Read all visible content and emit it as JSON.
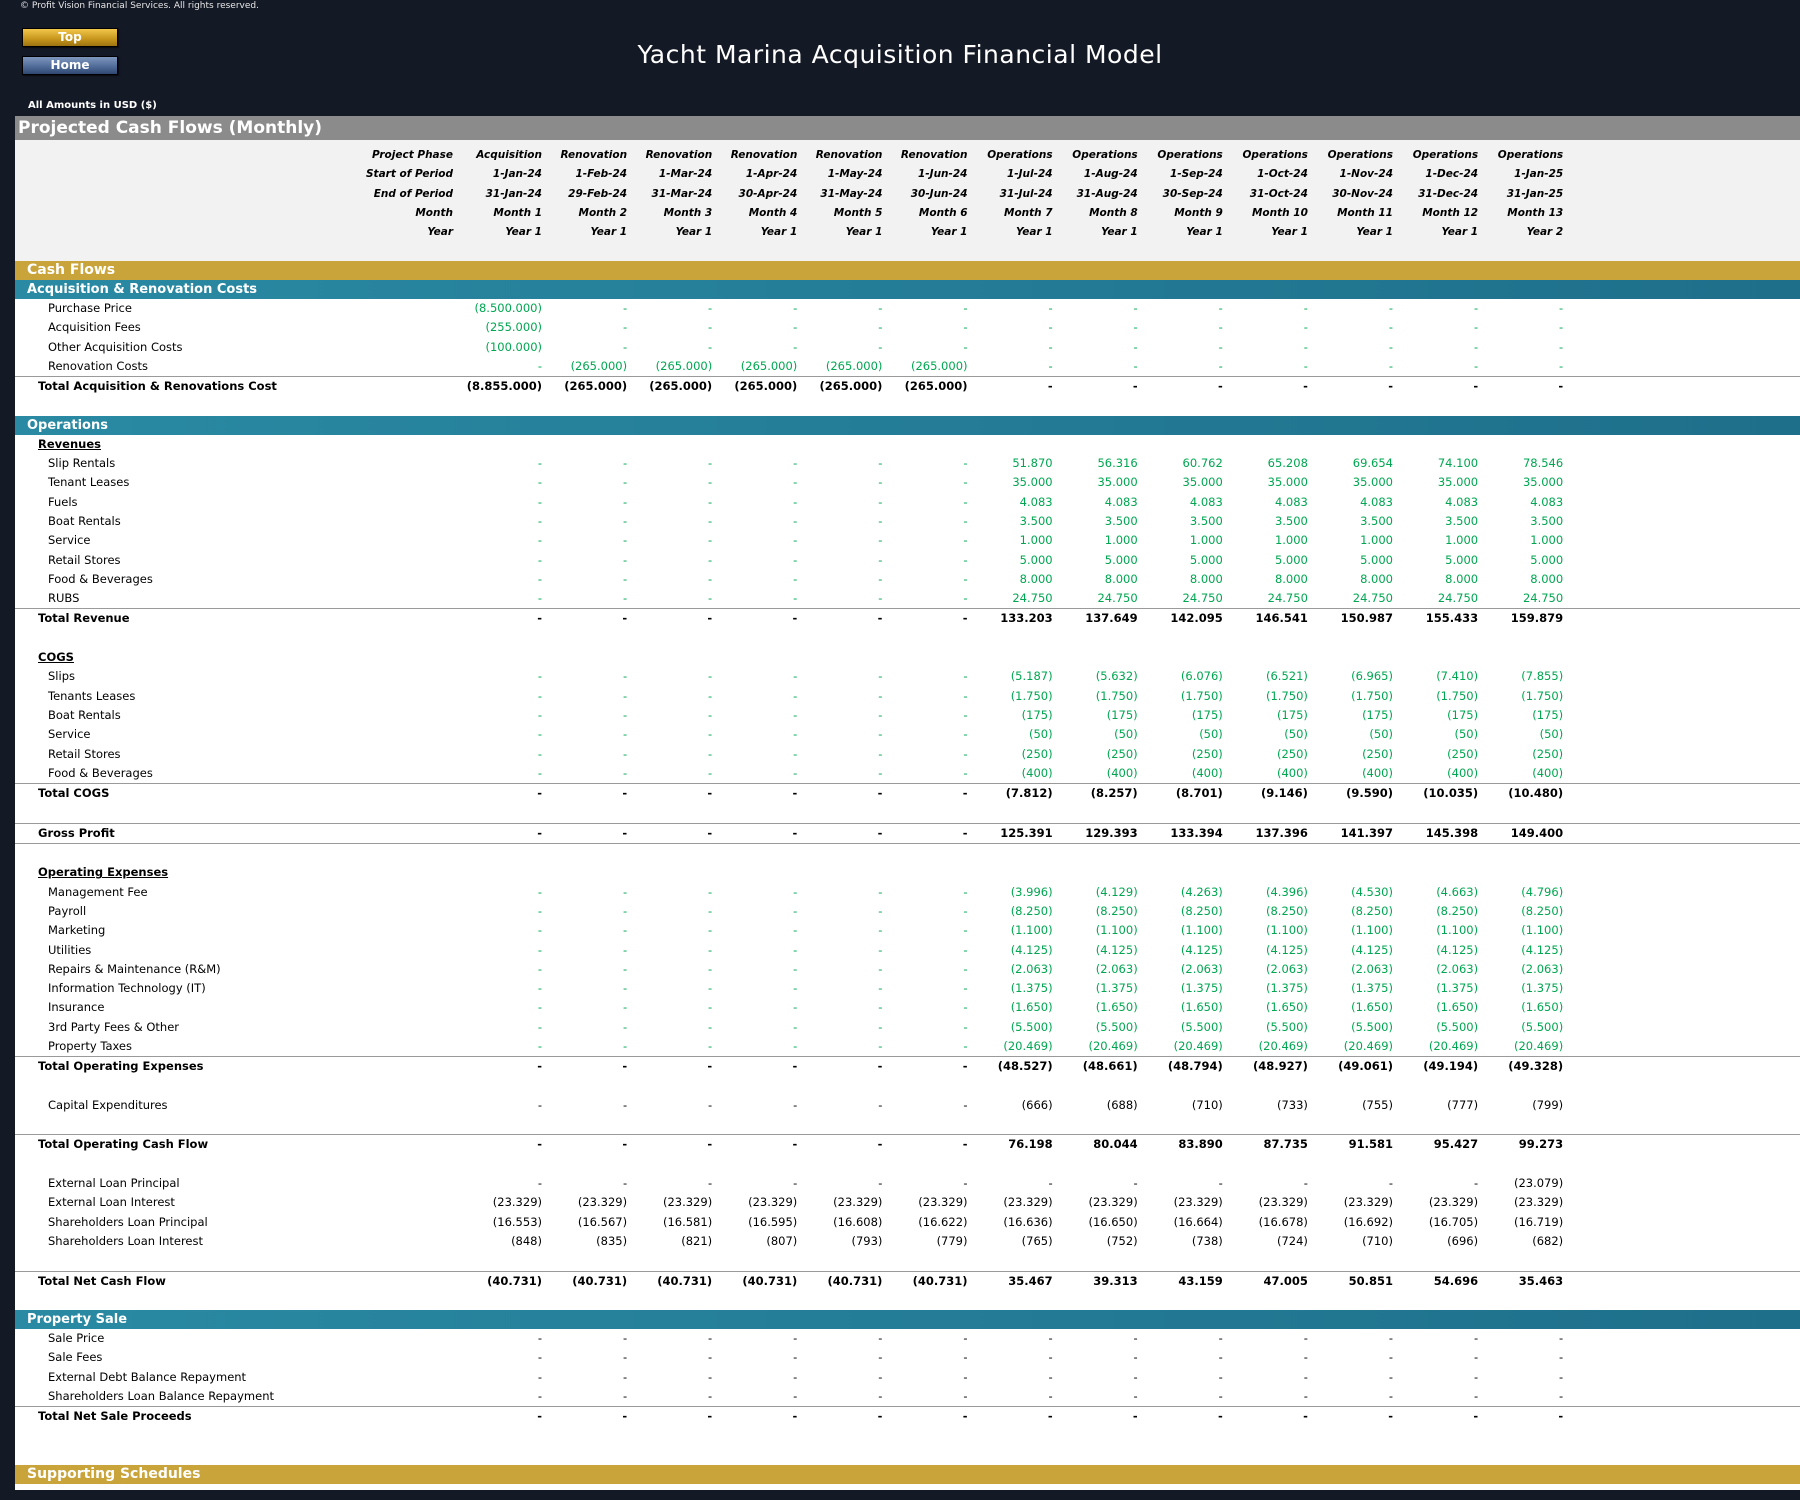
{
  "copyright": "© Profit Vision Financial Services. All rights reserved.",
  "buttons": {
    "top": "Top",
    "home": "Home"
  },
  "title": "Yacht Marina Acquisition Financial Model",
  "amounts_note": "All Amounts in  USD ($)",
  "sheet_title": "Projected Cash Flows (Monthly)",
  "header": {
    "labels": [
      "Project Phase",
      "Start of Period",
      "End of Period",
      "Month",
      "Year"
    ],
    "columns": [
      [
        "Acquisition",
        "1-Jan-24",
        "31-Jan-24",
        "Month 1",
        "Year 1"
      ],
      [
        "Renovation",
        "1-Feb-24",
        "29-Feb-24",
        "Month 2",
        "Year 1"
      ],
      [
        "Renovation",
        "1-Mar-24",
        "31-Mar-24",
        "Month 3",
        "Year 1"
      ],
      [
        "Renovation",
        "1-Apr-24",
        "30-Apr-24",
        "Month 4",
        "Year 1"
      ],
      [
        "Renovation",
        "1-May-24",
        "31-May-24",
        "Month 5",
        "Year 1"
      ],
      [
        "Renovation",
        "1-Jun-24",
        "30-Jun-24",
        "Month 6",
        "Year 1"
      ],
      [
        "Operations",
        "1-Jul-24",
        "31-Jul-24",
        "Month 7",
        "Year 1"
      ],
      [
        "Operations",
        "1-Aug-24",
        "31-Aug-24",
        "Month 8",
        "Year 1"
      ],
      [
        "Operations",
        "1-Sep-24",
        "30-Sep-24",
        "Month 9",
        "Year 1"
      ],
      [
        "Operations",
        "1-Oct-24",
        "31-Oct-24",
        "Month 10",
        "Year 1"
      ],
      [
        "Operations",
        "1-Nov-24",
        "30-Nov-24",
        "Month 11",
        "Year 1"
      ],
      [
        "Operations",
        "1-Dec-24",
        "31-Dec-24",
        "Month 12",
        "Year 1"
      ],
      [
        "Operations",
        "1-Jan-25",
        "31-Jan-25",
        "Month 13",
        "Year 2"
      ]
    ]
  },
  "rows": [
    {
      "type": "gold",
      "label": "Cash Flows"
    },
    {
      "type": "teal",
      "label": "Acquisition & Renovation Costs"
    },
    {
      "type": "item",
      "label": "Purchase Price",
      "color": "green",
      "v": [
        "(8.500.000)",
        "-",
        "-",
        "-",
        "-",
        "-",
        "-",
        "-",
        "-",
        "-",
        "-",
        "-",
        "-"
      ]
    },
    {
      "type": "item",
      "label": "Acquisition Fees",
      "color": "green",
      "v": [
        "(255.000)",
        "-",
        "-",
        "-",
        "-",
        "-",
        "-",
        "-",
        "-",
        "-",
        "-",
        "-",
        "-"
      ]
    },
    {
      "type": "item",
      "label": "Other Acquisition Costs",
      "color": "green",
      "v": [
        "(100.000)",
        "-",
        "-",
        "-",
        "-",
        "-",
        "-",
        "-",
        "-",
        "-",
        "-",
        "-",
        "-"
      ]
    },
    {
      "type": "item",
      "label": "Renovation Costs",
      "color": "green",
      "v": [
        "-",
        "(265.000)",
        "(265.000)",
        "(265.000)",
        "(265.000)",
        "(265.000)",
        "-",
        "-",
        "-",
        "-",
        "-",
        "-",
        "-"
      ]
    },
    {
      "type": "total",
      "label": "Total Acquisition & Renovations Cost",
      "v": [
        "(8.855.000)",
        "(265.000)",
        "(265.000)",
        "(265.000)",
        "(265.000)",
        "(265.000)",
        "-",
        "-",
        "-",
        "-",
        "-",
        "-",
        "-"
      ]
    },
    {
      "type": "blank"
    },
    {
      "type": "teal",
      "label": "Operations"
    },
    {
      "type": "sub",
      "label": "Revenues"
    },
    {
      "type": "item",
      "label": "Slip Rentals",
      "color": "green",
      "v": [
        "-",
        "-",
        "-",
        "-",
        "-",
        "-",
        "51.870",
        "56.316",
        "60.762",
        "65.208",
        "69.654",
        "74.100",
        "78.546"
      ]
    },
    {
      "type": "item",
      "label": "Tenant Leases",
      "color": "green",
      "v": [
        "-",
        "-",
        "-",
        "-",
        "-",
        "-",
        "35.000",
        "35.000",
        "35.000",
        "35.000",
        "35.000",
        "35.000",
        "35.000"
      ]
    },
    {
      "type": "item",
      "label": "Fuels",
      "color": "green",
      "v": [
        "-",
        "-",
        "-",
        "-",
        "-",
        "-",
        "4.083",
        "4.083",
        "4.083",
        "4.083",
        "4.083",
        "4.083",
        "4.083"
      ]
    },
    {
      "type": "item",
      "label": "Boat Rentals",
      "color": "green",
      "v": [
        "-",
        "-",
        "-",
        "-",
        "-",
        "-",
        "3.500",
        "3.500",
        "3.500",
        "3.500",
        "3.500",
        "3.500",
        "3.500"
      ]
    },
    {
      "type": "item",
      "label": "Service",
      "color": "green",
      "v": [
        "-",
        "-",
        "-",
        "-",
        "-",
        "-",
        "1.000",
        "1.000",
        "1.000",
        "1.000",
        "1.000",
        "1.000",
        "1.000"
      ]
    },
    {
      "type": "item",
      "label": "Retail Stores",
      "color": "green",
      "v": [
        "-",
        "-",
        "-",
        "-",
        "-",
        "-",
        "5.000",
        "5.000",
        "5.000",
        "5.000",
        "5.000",
        "5.000",
        "5.000"
      ]
    },
    {
      "type": "item",
      "label": "Food & Beverages",
      "color": "green",
      "v": [
        "-",
        "-",
        "-",
        "-",
        "-",
        "-",
        "8.000",
        "8.000",
        "8.000",
        "8.000",
        "8.000",
        "8.000",
        "8.000"
      ]
    },
    {
      "type": "item",
      "label": "RUBS",
      "color": "green",
      "v": [
        "-",
        "-",
        "-",
        "-",
        "-",
        "-",
        "24.750",
        "24.750",
        "24.750",
        "24.750",
        "24.750",
        "24.750",
        "24.750"
      ]
    },
    {
      "type": "total",
      "label": "Total Revenue",
      "v": [
        "-",
        "-",
        "-",
        "-",
        "-",
        "-",
        "133.203",
        "137.649",
        "142.095",
        "146.541",
        "150.987",
        "155.433",
        "159.879"
      ]
    },
    {
      "type": "blank"
    },
    {
      "type": "sub",
      "label": "COGS"
    },
    {
      "type": "item",
      "label": "Slips",
      "color": "green",
      "v": [
        "-",
        "-",
        "-",
        "-",
        "-",
        "-",
        "(5.187)",
        "(5.632)",
        "(6.076)",
        "(6.521)",
        "(6.965)",
        "(7.410)",
        "(7.855)"
      ]
    },
    {
      "type": "item",
      "label": "Tenants Leases",
      "color": "green",
      "v": [
        "-",
        "-",
        "-",
        "-",
        "-",
        "-",
        "(1.750)",
        "(1.750)",
        "(1.750)",
        "(1.750)",
        "(1.750)",
        "(1.750)",
        "(1.750)"
      ]
    },
    {
      "type": "item",
      "label": "Boat Rentals",
      "color": "green",
      "v": [
        "-",
        "-",
        "-",
        "-",
        "-",
        "-",
        "(175)",
        "(175)",
        "(175)",
        "(175)",
        "(175)",
        "(175)",
        "(175)"
      ]
    },
    {
      "type": "item",
      "label": "Service",
      "color": "green",
      "v": [
        "-",
        "-",
        "-",
        "-",
        "-",
        "-",
        "(50)",
        "(50)",
        "(50)",
        "(50)",
        "(50)",
        "(50)",
        "(50)"
      ]
    },
    {
      "type": "item",
      "label": "Retail Stores",
      "color": "green",
      "v": [
        "-",
        "-",
        "-",
        "-",
        "-",
        "-",
        "(250)",
        "(250)",
        "(250)",
        "(250)",
        "(250)",
        "(250)",
        "(250)"
      ]
    },
    {
      "type": "item",
      "label": "Food & Beverages",
      "color": "green",
      "v": [
        "-",
        "-",
        "-",
        "-",
        "-",
        "-",
        "(400)",
        "(400)",
        "(400)",
        "(400)",
        "(400)",
        "(400)",
        "(400)"
      ]
    },
    {
      "type": "total",
      "label": "Total COGS",
      "v": [
        "-",
        "-",
        "-",
        "-",
        "-",
        "-",
        "(7.812)",
        "(8.257)",
        "(8.701)",
        "(9.146)",
        "(9.590)",
        "(10.035)",
        "(10.480)"
      ]
    },
    {
      "type": "blank"
    },
    {
      "type": "total",
      "label": "Gross Profit",
      "v": [
        "-",
        "-",
        "-",
        "-",
        "-",
        "-",
        "125.391",
        "129.393",
        "133.394",
        "137.396",
        "141.397",
        "145.398",
        "149.400"
      ]
    },
    {
      "type": "blank",
      "line": true
    },
    {
      "type": "sub",
      "label": "Operating Expenses"
    },
    {
      "type": "item",
      "label": "Management Fee",
      "color": "green",
      "v": [
        "-",
        "-",
        "-",
        "-",
        "-",
        "-",
        "(3.996)",
        "(4.129)",
        "(4.263)",
        "(4.396)",
        "(4.530)",
        "(4.663)",
        "(4.796)"
      ]
    },
    {
      "type": "item",
      "label": "Payroll",
      "color": "green",
      "v": [
        "-",
        "-",
        "-",
        "-",
        "-",
        "-",
        "(8.250)",
        "(8.250)",
        "(8.250)",
        "(8.250)",
        "(8.250)",
        "(8.250)",
        "(8.250)"
      ]
    },
    {
      "type": "item",
      "label": "Marketing",
      "color": "green",
      "v": [
        "-",
        "-",
        "-",
        "-",
        "-",
        "-",
        "(1.100)",
        "(1.100)",
        "(1.100)",
        "(1.100)",
        "(1.100)",
        "(1.100)",
        "(1.100)"
      ]
    },
    {
      "type": "item",
      "label": "Utilities",
      "color": "green",
      "v": [
        "-",
        "-",
        "-",
        "-",
        "-",
        "-",
        "(4.125)",
        "(4.125)",
        "(4.125)",
        "(4.125)",
        "(4.125)",
        "(4.125)",
        "(4.125)"
      ]
    },
    {
      "type": "item",
      "label": "Repairs & Maintenance (R&M)",
      "color": "green",
      "v": [
        "-",
        "-",
        "-",
        "-",
        "-",
        "-",
        "(2.063)",
        "(2.063)",
        "(2.063)",
        "(2.063)",
        "(2.063)",
        "(2.063)",
        "(2.063)"
      ]
    },
    {
      "type": "item",
      "label": "Information Technology (IT)",
      "color": "green",
      "v": [
        "-",
        "-",
        "-",
        "-",
        "-",
        "-",
        "(1.375)",
        "(1.375)",
        "(1.375)",
        "(1.375)",
        "(1.375)",
        "(1.375)",
        "(1.375)"
      ]
    },
    {
      "type": "item",
      "label": "Insurance",
      "color": "green",
      "v": [
        "-",
        "-",
        "-",
        "-",
        "-",
        "-",
        "(1.650)",
        "(1.650)",
        "(1.650)",
        "(1.650)",
        "(1.650)",
        "(1.650)",
        "(1.650)"
      ]
    },
    {
      "type": "item",
      "label": "3rd Party Fees & Other",
      "color": "green",
      "v": [
        "-",
        "-",
        "-",
        "-",
        "-",
        "-",
        "(5.500)",
        "(5.500)",
        "(5.500)",
        "(5.500)",
        "(5.500)",
        "(5.500)",
        "(5.500)"
      ]
    },
    {
      "type": "item",
      "label": "Property Taxes",
      "color": "green",
      "v": [
        "-",
        "-",
        "-",
        "-",
        "-",
        "-",
        "(20.469)",
        "(20.469)",
        "(20.469)",
        "(20.469)",
        "(20.469)",
        "(20.469)",
        "(20.469)"
      ]
    },
    {
      "type": "total",
      "label": "Total Operating Expenses",
      "v": [
        "-",
        "-",
        "-",
        "-",
        "-",
        "-",
        "(48.527)",
        "(48.661)",
        "(48.794)",
        "(48.927)",
        "(49.061)",
        "(49.194)",
        "(49.328)"
      ]
    },
    {
      "type": "blank"
    },
    {
      "type": "item",
      "label": "Capital Expenditures",
      "color": "dark",
      "v": [
        "-",
        "-",
        "-",
        "-",
        "-",
        "-",
        "(666)",
        "(688)",
        "(710)",
        "(733)",
        "(755)",
        "(777)",
        "(799)"
      ]
    },
    {
      "type": "blank"
    },
    {
      "type": "total",
      "label": "Total Operating Cash Flow",
      "v": [
        "-",
        "-",
        "-",
        "-",
        "-",
        "-",
        "76.198",
        "80.044",
        "83.890",
        "87.735",
        "91.581",
        "95.427",
        "99.273"
      ]
    },
    {
      "type": "blank"
    },
    {
      "type": "item",
      "label": "External Loan Principal",
      "color": "dark",
      "v": [
        "-",
        "-",
        "-",
        "-",
        "-",
        "-",
        "-",
        "-",
        "-",
        "-",
        "-",
        "-",
        "(23.079)"
      ]
    },
    {
      "type": "item",
      "label": "External Loan Interest",
      "color": "dark",
      "v": [
        "(23.329)",
        "(23.329)",
        "(23.329)",
        "(23.329)",
        "(23.329)",
        "(23.329)",
        "(23.329)",
        "(23.329)",
        "(23.329)",
        "(23.329)",
        "(23.329)",
        "(23.329)",
        "(23.329)"
      ]
    },
    {
      "type": "item",
      "label": "Shareholders Loan Principal",
      "color": "dark",
      "v": [
        "(16.553)",
        "(16.567)",
        "(16.581)",
        "(16.595)",
        "(16.608)",
        "(16.622)",
        "(16.636)",
        "(16.650)",
        "(16.664)",
        "(16.678)",
        "(16.692)",
        "(16.705)",
        "(16.719)"
      ]
    },
    {
      "type": "item",
      "label": "Shareholders Loan Interest",
      "color": "dark",
      "v": [
        "(848)",
        "(835)",
        "(821)",
        "(807)",
        "(793)",
        "(779)",
        "(765)",
        "(752)",
        "(738)",
        "(724)",
        "(710)",
        "(696)",
        "(682)"
      ]
    },
    {
      "type": "blank"
    },
    {
      "type": "total",
      "label": "Total Net Cash Flow",
      "v": [
        "(40.731)",
        "(40.731)",
        "(40.731)",
        "(40.731)",
        "(40.731)",
        "(40.731)",
        "35.467",
        "39.313",
        "43.159",
        "47.005",
        "50.851",
        "54.696",
        "35.463"
      ]
    },
    {
      "type": "blank"
    },
    {
      "type": "teal",
      "label": "Property Sale"
    },
    {
      "type": "item",
      "label": "Sale Price",
      "color": "dark",
      "v": [
        "-",
        "-",
        "-",
        "-",
        "-",
        "-",
        "-",
        "-",
        "-",
        "-",
        "-",
        "-",
        "-"
      ]
    },
    {
      "type": "item",
      "label": "Sale Fees",
      "color": "dark",
      "v": [
        "-",
        "-",
        "-",
        "-",
        "-",
        "-",
        "-",
        "-",
        "-",
        "-",
        "-",
        "-",
        "-"
      ]
    },
    {
      "type": "item",
      "label": "External Debt Balance Repayment",
      "color": "dark",
      "v": [
        "-",
        "-",
        "-",
        "-",
        "-",
        "-",
        "-",
        "-",
        "-",
        "-",
        "-",
        "-",
        "-"
      ]
    },
    {
      "type": "item",
      "label": "Shareholders Loan Balance Repayment",
      "color": "dark",
      "v": [
        "-",
        "-",
        "-",
        "-",
        "-",
        "-",
        "-",
        "-",
        "-",
        "-",
        "-",
        "-",
        "-"
      ]
    },
    {
      "type": "total",
      "label": "Total Net Sale Proceeds",
      "v": [
        "-",
        "-",
        "-",
        "-",
        "-",
        "-",
        "-",
        "-",
        "-",
        "-",
        "-",
        "-",
        "-"
      ]
    },
    {
      "type": "blank"
    },
    {
      "type": "blank"
    },
    {
      "type": "gold",
      "label": "Supporting Schedules"
    }
  ]
}
